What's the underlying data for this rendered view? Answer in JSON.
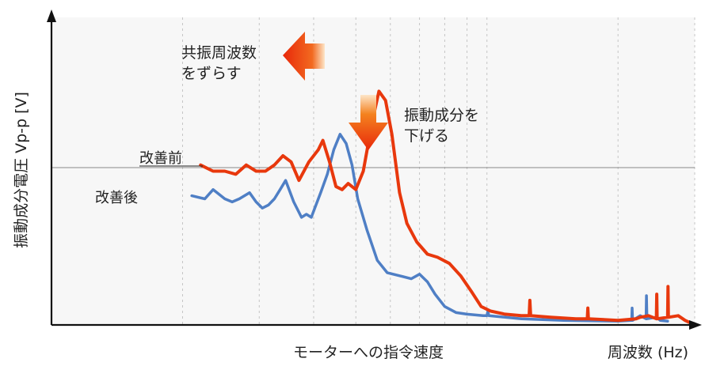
{
  "chart_data": {
    "type": "line",
    "title": "",
    "xlabel": "モーターへの指令速度",
    "xunit": "周波数 (Hz)",
    "ylabel": "振動成分電圧 Vp-p [V]",
    "x_scale": "log",
    "xlim": [
      1,
      30
    ],
    "ylim": [
      0,
      1
    ],
    "grid": "vertical-dashed",
    "legend": "inline labels at series start",
    "series": [
      {
        "name": "改善前",
        "color": "#e8380d",
        "points": [
          [
            2.2,
            0.52
          ],
          [
            2.35,
            0.5
          ],
          [
            2.5,
            0.5
          ],
          [
            2.65,
            0.49
          ],
          [
            2.8,
            0.52
          ],
          [
            2.95,
            0.5
          ],
          [
            3.1,
            0.5
          ],
          [
            3.25,
            0.52
          ],
          [
            3.4,
            0.55
          ],
          [
            3.55,
            0.53
          ],
          [
            3.7,
            0.47
          ],
          [
            3.9,
            0.53
          ],
          [
            4.1,
            0.57
          ],
          [
            4.2,
            0.6
          ],
          [
            4.35,
            0.53
          ],
          [
            4.5,
            0.45
          ],
          [
            4.65,
            0.44
          ],
          [
            4.8,
            0.46
          ],
          [
            5.0,
            0.44
          ],
          [
            5.2,
            0.5
          ],
          [
            5.45,
            0.66
          ],
          [
            5.65,
            0.76
          ],
          [
            5.85,
            0.73
          ],
          [
            6.05,
            0.62
          ],
          [
            6.3,
            0.43
          ],
          [
            6.55,
            0.33
          ],
          [
            6.9,
            0.27
          ],
          [
            7.3,
            0.23
          ],
          [
            7.7,
            0.22
          ],
          [
            8.2,
            0.2
          ],
          [
            8.7,
            0.16
          ],
          [
            9.2,
            0.11
          ],
          [
            9.7,
            0.06
          ],
          [
            10.2,
            0.045
          ],
          [
            11,
            0.035
          ],
          [
            12,
            0.03
          ],
          [
            12.5,
            0.03
          ],
          [
            12.55,
            0.08
          ],
          [
            12.6,
            0.03
          ],
          [
            14,
            0.025
          ],
          [
            16,
            0.02
          ],
          [
            17,
            0.02
          ],
          [
            17.05,
            0.055
          ],
          [
            17.1,
            0.02
          ],
          [
            20,
            0.015
          ],
          [
            22,
            0.02
          ],
          [
            22.5,
            0.025
          ],
          [
            23.5,
            0.03
          ],
          [
            24.5,
            0.02
          ],
          [
            24.55,
            0.1
          ],
          [
            24.6,
            0.02
          ],
          [
            26,
            0.025
          ],
          [
            26.05,
            0.125
          ],
          [
            26.1,
            0.025
          ],
          [
            27.5,
            0.03
          ],
          [
            28.5,
            0.015
          ],
          [
            29.5,
            0.005
          ]
        ]
      },
      {
        "name": "改善後",
        "color": "#4f7fc5",
        "points": [
          [
            2.1,
            0.42
          ],
          [
            2.25,
            0.41
          ],
          [
            2.35,
            0.44
          ],
          [
            2.5,
            0.41
          ],
          [
            2.6,
            0.4
          ],
          [
            2.7,
            0.41
          ],
          [
            2.85,
            0.43
          ],
          [
            2.95,
            0.4
          ],
          [
            3.05,
            0.38
          ],
          [
            3.15,
            0.39
          ],
          [
            3.25,
            0.41
          ],
          [
            3.35,
            0.44
          ],
          [
            3.45,
            0.47
          ],
          [
            3.6,
            0.4
          ],
          [
            3.75,
            0.35
          ],
          [
            3.85,
            0.36
          ],
          [
            3.95,
            0.35
          ],
          [
            4.05,
            0.39
          ],
          [
            4.15,
            0.43
          ],
          [
            4.3,
            0.49
          ],
          [
            4.45,
            0.57
          ],
          [
            4.6,
            0.62
          ],
          [
            4.75,
            0.59
          ],
          [
            4.9,
            0.52
          ],
          [
            5.05,
            0.41
          ],
          [
            5.3,
            0.31
          ],
          [
            5.6,
            0.21
          ],
          [
            5.9,
            0.17
          ],
          [
            6.3,
            0.16
          ],
          [
            6.7,
            0.15
          ],
          [
            7.0,
            0.165
          ],
          [
            7.3,
            0.14
          ],
          [
            7.6,
            0.1
          ],
          [
            8.0,
            0.06
          ],
          [
            8.5,
            0.04
          ],
          [
            9,
            0.035
          ],
          [
            9.8,
            0.03
          ],
          [
            10,
            0.03
          ],
          [
            10.05,
            0.045
          ],
          [
            10.1,
            0.03
          ],
          [
            12,
            0.02
          ],
          [
            15,
            0.015
          ],
          [
            20,
            0.012
          ],
          [
            21.5,
            0.015
          ],
          [
            21.55,
            0.055
          ],
          [
            21.6,
            0.015
          ],
          [
            22.5,
            0.03
          ],
          [
            23.2,
            0.02
          ],
          [
            23.25,
            0.095
          ],
          [
            23.3,
            0.02
          ],
          [
            24.5,
            0.025
          ],
          [
            25,
            0.015
          ],
          [
            26,
            0.012
          ]
        ]
      }
    ],
    "annotations": [
      {
        "text_lines": [
          "共振周波数",
          "をずらす"
        ],
        "arrow": "left"
      },
      {
        "text_lines": [
          "振動成分を",
          "下げる"
        ],
        "arrow": "down"
      }
    ]
  },
  "colors": {
    "before": "#e8380d",
    "after": "#4f7fc5",
    "axis": "#111111",
    "grid": "#b0b0b0",
    "plot_bg": "#f7f7f7"
  }
}
